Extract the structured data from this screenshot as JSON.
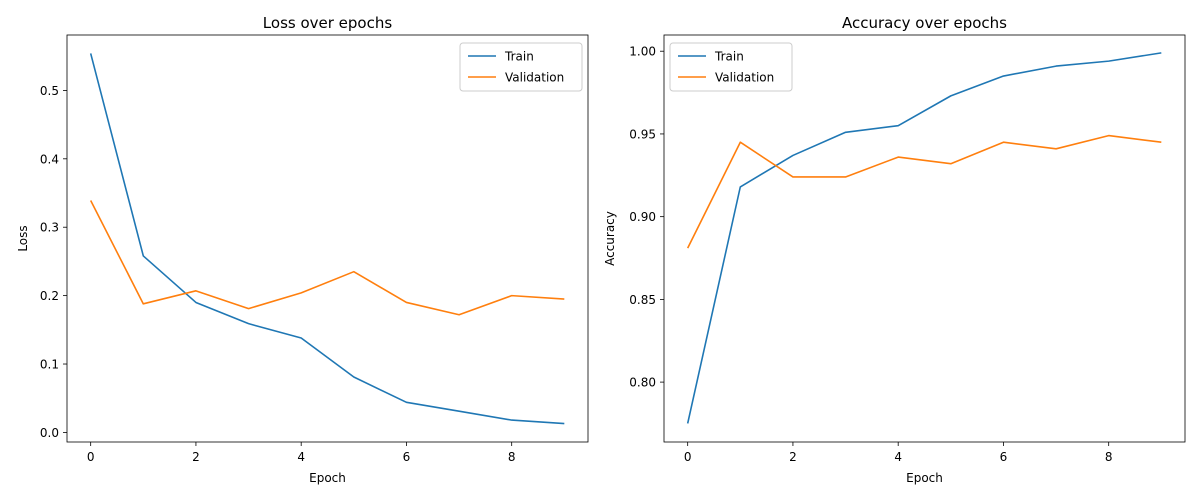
{
  "chart_data": [
    {
      "type": "line",
      "title": "Loss over epochs",
      "xlabel": "Epoch",
      "ylabel": "Loss",
      "x": [
        0,
        1,
        2,
        3,
        4,
        5,
        6,
        7,
        8,
        9
      ],
      "xlim": [
        -0.45,
        9.45
      ],
      "ylim": [
        -0.014,
        0.581
      ],
      "xticks": [
        0,
        2,
        4,
        6,
        8
      ],
      "yticks": [
        0.0,
        0.1,
        0.2,
        0.3,
        0.4,
        0.5
      ],
      "ytick_labels": [
        "0.0",
        "0.1",
        "0.2",
        "0.3",
        "0.4",
        "0.5"
      ],
      "legend_position": "top-right",
      "grid": false,
      "series": [
        {
          "name": "Train",
          "color": "#1f77b4",
          "values": [
            0.554,
            0.258,
            0.19,
            0.159,
            0.138,
            0.081,
            0.044,
            0.031,
            0.018,
            0.013
          ]
        },
        {
          "name": "Validation",
          "color": "#ff7f0e",
          "values": [
            0.339,
            0.188,
            0.207,
            0.181,
            0.204,
            0.235,
            0.19,
            0.172,
            0.2,
            0.195
          ]
        }
      ]
    },
    {
      "type": "line",
      "title": "Accuracy over epochs",
      "xlabel": "Epoch",
      "ylabel": "Accuracy",
      "x": [
        0,
        1,
        2,
        3,
        4,
        5,
        6,
        7,
        8,
        9
      ],
      "xlim": [
        -0.45,
        9.45
      ],
      "ylim": [
        0.7638,
        1.0098
      ],
      "xticks": [
        0,
        2,
        4,
        6,
        8
      ],
      "yticks": [
        0.8,
        0.85,
        0.9,
        0.95,
        1.0
      ],
      "ytick_labels": [
        "0.80",
        "0.85",
        "0.90",
        "0.95",
        "1.00"
      ],
      "legend_position": "top-left",
      "grid": false,
      "series": [
        {
          "name": "Train",
          "color": "#1f77b4",
          "values": [
            0.775,
            0.918,
            0.937,
            0.951,
            0.955,
            0.973,
            0.985,
            0.991,
            0.994,
            0.999
          ]
        },
        {
          "name": "Validation",
          "color": "#ff7f0e",
          "values": [
            0.881,
            0.945,
            0.924,
            0.924,
            0.936,
            0.932,
            0.945,
            0.941,
            0.949,
            0.945
          ]
        }
      ]
    }
  ]
}
